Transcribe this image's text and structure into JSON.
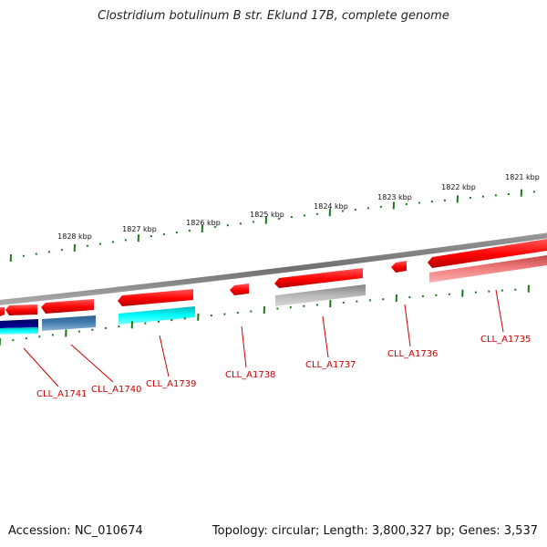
{
  "title": "Clostridium botulinum B str. Eklund 17B, complete genome",
  "footer": {
    "accession": "Accession: NC_010674",
    "summary": "Topology: circular; Length: 3,800,327 bp; Genes: 3,537"
  },
  "scale_labels": [
    "1828 kbp",
    "1827 kbp",
    "1826 kbp",
    "1825 kbp",
    "1824 kbp",
    "1823 kbp",
    "1822 kbp",
    "1821 kbp"
  ],
  "gene_labels": [
    "CLL_A1741",
    "CLL_A1740",
    "CLL_A1739",
    "CLL_A1738",
    "CLL_A1737",
    "CLL_A1736",
    "CLL_A1735"
  ],
  "colors": {
    "backbone": "#808080",
    "cds": "#ff0000",
    "label": "#cc0000",
    "tick": "#1a7a1a",
    "track_pink": "#f08a8a",
    "track_gray": "#b0b0b0",
    "track_cyan": "#00ffff",
    "track_steel": "#4682b4",
    "track_navy": "#000080"
  }
}
